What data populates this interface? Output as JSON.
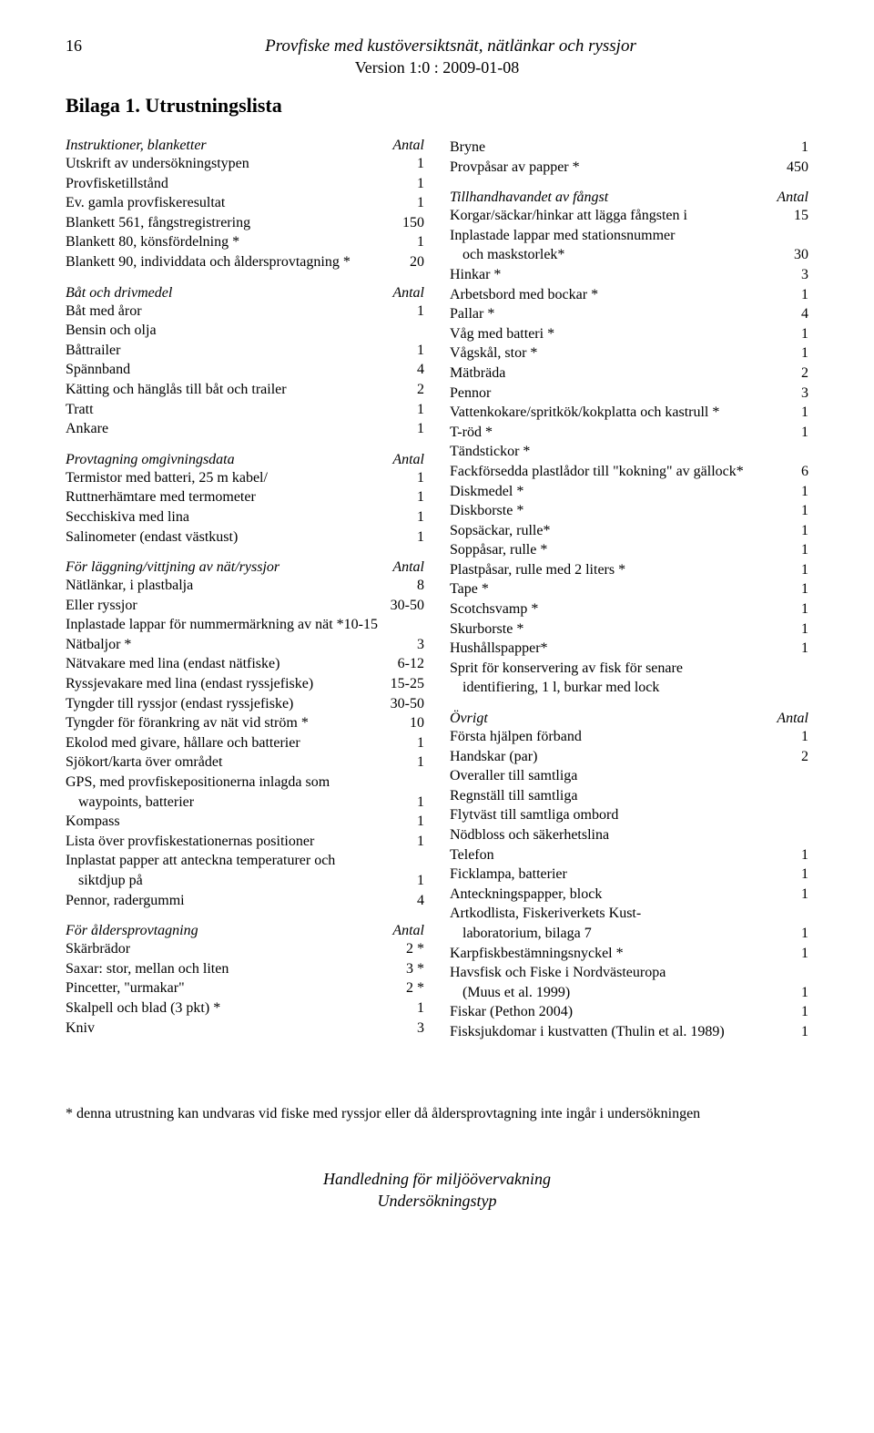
{
  "header": {
    "page_number": "16",
    "title": "Provfiske med kustöversiktsnät, nätlänkar och ryssjor",
    "version": "Version 1:0 : 2009-01-08",
    "bilaga": "Bilaga 1.   Utrustningslista"
  },
  "left": {
    "sections": [
      {
        "title": "Instruktioner, blanketter",
        "antal": "Antal",
        "rows": [
          {
            "label": "Utskrift av undersökningstypen",
            "val": "1"
          },
          {
            "label": "Provfisketillstånd",
            "val": "1"
          },
          {
            "label": "Ev. gamla provfiskeresultat",
            "val": "1"
          },
          {
            "label": "Blankett 561, fångstregistrering",
            "val": "150"
          },
          {
            "label": "Blankett 80, könsfördelning *",
            "val": "1"
          },
          {
            "label": "Blankett 90, individdata och åldersprovtagning *",
            "val": "20"
          }
        ]
      },
      {
        "title": "Båt och drivmedel",
        "antal": "Antal",
        "rows": [
          {
            "label": "Båt med åror",
            "val": "1"
          },
          {
            "label": "Bensin och olja",
            "val": ""
          },
          {
            "label": "Båttrailer",
            "val": "1"
          },
          {
            "label": "Spännband",
            "val": "4"
          },
          {
            "label": "Kätting och hänglås till båt och trailer",
            "val": "2"
          },
          {
            "label": "Tratt",
            "val": "1"
          },
          {
            "label": "Ankare",
            "val": "1"
          }
        ]
      },
      {
        "title": "Provtagning omgivningsdata",
        "antal": "Antal",
        "rows": [
          {
            "label": "Termistor med batteri, 25 m kabel/",
            "val": "1"
          },
          {
            "label": "Ruttnerhämtare med termometer",
            "val": "1"
          },
          {
            "label": "Secchiskiva med lina",
            "val": "1"
          },
          {
            "label": "Salinometer (endast västkust)",
            "val": "1"
          }
        ]
      },
      {
        "title": "För läggning/vittjning av nät/ryssjor",
        "antal": "Antal",
        "rows": [
          {
            "label": "Nätlänkar, i plastbalja",
            "val": "8"
          },
          {
            "label": "Eller ryssjor",
            "val": "30-50"
          },
          {
            "label": "Inplastade lappar för nummermärkning av nät *10-15",
            "val": ""
          },
          {
            "label": "Nätbaljor *",
            "val": "3"
          },
          {
            "label": "Nätvakare med lina (endast nätfiske)",
            "val": "6-12"
          },
          {
            "label": "Ryssjevakare med lina (endast ryssjefiske)",
            "val": "15-25"
          },
          {
            "label": "Tyngder till ryssjor (endast ryssjefiske)",
            "val": "30-50"
          },
          {
            "label": "Tyngder för förankring av nät vid ström *",
            "val": "10"
          },
          {
            "label": "Ekolod med givare, hållare och batterier",
            "val": "1"
          },
          {
            "label": "Sjökort/karta över området",
            "val": "1"
          },
          {
            "label": "GPS, med provfiskepositionerna inlagda som",
            "val": ""
          },
          {
            "label": "waypoints, batterier",
            "val": "1",
            "cont": true
          },
          {
            "label": "Kompass",
            "val": "1"
          },
          {
            "label": "Lista över provfiskestationernas positioner",
            "val": "1"
          },
          {
            "label": "Inplastat papper att anteckna temperaturer och",
            "val": ""
          },
          {
            "label": "siktdjup på",
            "val": "1",
            "cont": true
          },
          {
            "label": "Pennor, radergummi",
            "val": "4"
          }
        ]
      },
      {
        "title": "För åldersprovtagning",
        "antal": "Antal",
        "rows": [
          {
            "label": "Skärbrädor",
            "val": "2 *"
          },
          {
            "label": "Saxar: stor, mellan och liten",
            "val": "3 *"
          },
          {
            "label": "Pincetter, \"urmakar\"",
            "val": "2 *"
          },
          {
            "label": "Skalpell och blad (3 pkt) *",
            "val": "1"
          },
          {
            "label": "Kniv",
            "val": "3"
          }
        ]
      }
    ]
  },
  "right": {
    "preRows": [
      {
        "label": "Bryne",
        "val": "1"
      },
      {
        "label": "Provpåsar av papper *",
        "val": "450"
      }
    ],
    "sections": [
      {
        "title": "Tillhandhavandet av fångst",
        "antal": "Antal",
        "rows": [
          {
            "label": "Korgar/säckar/hinkar att lägga fångsten i",
            "val": "15"
          },
          {
            "label": "Inplastade lappar med stationsnummer",
            "val": ""
          },
          {
            "label": "och maskstorlek*",
            "val": "30",
            "cont": true
          },
          {
            "label": "Hinkar *",
            "val": "3"
          },
          {
            "label": "Arbetsbord med bockar *",
            "val": "1"
          },
          {
            "label": "Pallar *",
            "val": "4"
          },
          {
            "label": "Våg med batteri *",
            "val": "1"
          },
          {
            "label": "Vågskål, stor *",
            "val": "1"
          },
          {
            "label": "Mätbräda",
            "val": "2"
          },
          {
            "label": "Pennor",
            "val": "3"
          },
          {
            "label": "Vattenkokare/spritkök/kokplatta och kastrull *",
            "val": "1"
          },
          {
            "label": "T-röd *",
            "val": "1"
          },
          {
            "label": "Tändstickor *",
            "val": ""
          },
          {
            "label": "Fackförsedda plastlådor till \"kokning\" av gällock*",
            "val": "6"
          },
          {
            "label": "Diskmedel *",
            "val": "1"
          },
          {
            "label": "Diskborste *",
            "val": "1"
          },
          {
            "label": "Sopsäckar, rulle*",
            "val": "1"
          },
          {
            "label": "Soppåsar, rulle *",
            "val": "1"
          },
          {
            "label": "Plastpåsar, rulle med 2 liters *",
            "val": "1"
          },
          {
            "label": "Tape *",
            "val": "1"
          },
          {
            "label": "Scotchsvamp *",
            "val": "1"
          },
          {
            "label": "Skurborste *",
            "val": "1"
          },
          {
            "label": "Hushållspapper*",
            "val": "1"
          },
          {
            "label": "Sprit för konservering av fisk för senare",
            "val": ""
          },
          {
            "label": "identifiering, 1 l, burkar med lock",
            "val": "",
            "cont": true
          }
        ]
      },
      {
        "title": "Övrigt",
        "antal": "Antal",
        "rows": [
          {
            "label": "Första hjälpen förband",
            "val": "1"
          },
          {
            "label": "Handskar (par)",
            "val": "2"
          },
          {
            "label": "Overaller till samtliga",
            "val": ""
          },
          {
            "label": "Regnställ till samtliga",
            "val": ""
          },
          {
            "label": "Flytväst till samtliga ombord",
            "val": ""
          },
          {
            "label": "Nödbloss och säkerhetslina",
            "val": ""
          },
          {
            "label": "Telefon",
            "val": "1"
          },
          {
            "label": "Ficklampa, batterier",
            "val": "1"
          },
          {
            "label": "Anteckningspapper, block",
            "val": "1"
          },
          {
            "label": "Artkodlista, Fiskeriverkets Kust-",
            "val": ""
          },
          {
            "label": "laboratorium, bilaga 7",
            "val": "1",
            "cont": true
          },
          {
            "label": "Karpfiskbestämningsnyckel *",
            "val": "1"
          },
          {
            "label": "Havsfisk och Fiske i Nordvästeuropa",
            "val": ""
          },
          {
            "label": "(Muus et al. 1999)",
            "val": "1",
            "cont": true
          },
          {
            "label": "Fiskar (Pethon 2004)",
            "val": "1"
          },
          {
            "label": "Fisksjukdomar i kustvatten (Thulin et al. 1989)",
            "val": "1"
          }
        ]
      }
    ]
  },
  "footnote": "* denna utrustning kan undvaras vid fiske med ryssjor eller då åldersprovtagning inte ingår i undersökningen",
  "footer": {
    "line1": "Handledning för miljöövervakning",
    "line2": "Undersökningstyp"
  }
}
